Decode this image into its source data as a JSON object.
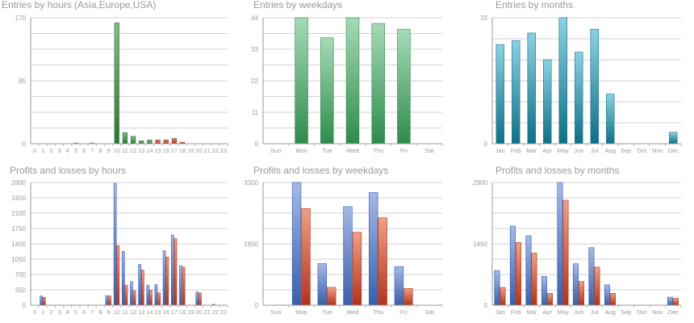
{
  "chart_data": [
    {
      "id": "entries-hours",
      "type": "bar",
      "title": "Entries by hours (Asia,Europe,USA)",
      "xlabel": "",
      "ylabel": "",
      "ylim": [
        0,
        170
      ],
      "yticks": [
        "0",
        "85",
        "170"
      ],
      "gridlines": 8,
      "grid": true,
      "categories": [
        "0",
        "1",
        "2",
        "3",
        "4",
        "5",
        "6",
        "7",
        "8",
        "9",
        "10",
        "11",
        "12",
        "13",
        "14",
        "15",
        "16",
        "17",
        "18",
        "19",
        "20",
        "21",
        "22",
        "23"
      ],
      "series": [
        {
          "values": [
            0,
            0,
            0,
            0,
            0,
            1,
            0,
            1,
            0,
            0,
            163,
            15,
            10,
            4,
            5,
            5,
            5,
            7,
            2,
            0,
            0,
            0,
            0,
            0
          ],
          "colors": [
            "#3d9a47",
            "#3d9a47",
            "#3d9a47",
            "#3d9a47",
            "#3d9a47",
            "#f2b35a",
            "#3d9a47",
            "#f2b35a",
            "#3d9a47",
            "#3d9a47",
            "#3d9a47",
            "#3d9a47",
            "#3d9a47",
            "#3d9a47",
            "#3d9a47",
            "#d0472b",
            "#d0472b",
            "#d0472b",
            "#d0472b",
            "#3d9a47",
            "#3d9a47",
            "#3d9a47",
            "#3d9a47",
            "#3d9a47"
          ]
        }
      ]
    },
    {
      "id": "entries-weekdays",
      "type": "bar",
      "title": "Entries by weekdays",
      "xlabel": "",
      "ylabel": "",
      "ylim": [
        0,
        44
      ],
      "yticks": [
        "0",
        "11",
        "22",
        "33",
        "44"
      ],
      "gridlines": 8,
      "grid": true,
      "categories": [
        "Sun",
        "Mon",
        "Tue",
        "Wed",
        "Thu",
        "Fri",
        "Sat"
      ],
      "series": [
        {
          "values": [
            0,
            44,
            37,
            44,
            42,
            40,
            0
          ],
          "color_top": "#a6dbb7",
          "color_bottom": "#2e8b4c"
        }
      ]
    },
    {
      "id": "entries-months",
      "type": "bar",
      "title": "Entries by months",
      "xlabel": "",
      "ylabel": "",
      "ylim": [
        0,
        33
      ],
      "yticks": [
        "0",
        "33"
      ],
      "gridlines": 6,
      "grid": true,
      "categories": [
        "Jan",
        "Feb",
        "Mar",
        "Apr",
        "May",
        "Jun",
        "Jul",
        "Aug",
        "Sep",
        "Oct",
        "Nov",
        "Dec"
      ],
      "series": [
        {
          "values": [
            26,
            27,
            29,
            22,
            33,
            24,
            30,
            13,
            0,
            0,
            0,
            3
          ],
          "color_top": "#8fd0e3",
          "color_bottom": "#0d6f86"
        }
      ]
    },
    {
      "id": "pl-hours",
      "type": "bar",
      "title": "Profits and losses by hours",
      "xlabel": "",
      "ylabel": "",
      "ylim": [
        0,
        2800
      ],
      "yticks": [
        "0",
        "350",
        "700",
        "1050",
        "1400",
        "1750",
        "2100",
        "2450",
        "2800"
      ],
      "gridlines": 8,
      "grid": true,
      "categories": [
        "0",
        "1",
        "2",
        "3",
        "4",
        "5",
        "6",
        "7",
        "8",
        "9",
        "10",
        "11",
        "12",
        "13",
        "14",
        "15",
        "16",
        "17",
        "18",
        "19",
        "20",
        "21",
        "22",
        "23"
      ],
      "series": [
        {
          "values": [
            0,
            210,
            0,
            0,
            0,
            0,
            0,
            0,
            0,
            220,
            2780,
            1230,
            540,
            930,
            460,
            470,
            1240,
            1600,
            900,
            0,
            300,
            0,
            20,
            0
          ],
          "color_top": "#a4b9e8",
          "color_bottom": "#3a5ea8"
        },
        {
          "values": [
            0,
            180,
            0,
            0,
            0,
            0,
            0,
            0,
            0,
            210,
            1360,
            460,
            330,
            800,
            340,
            280,
            1100,
            1520,
            870,
            0,
            280,
            0,
            0,
            0
          ],
          "color_top": "#f0a085",
          "color_bottom": "#b2321c"
        }
      ]
    },
    {
      "id": "pl-weekdays",
      "type": "bar",
      "title": "Profits and losses by weekdays",
      "xlabel": "",
      "ylabel": "",
      "ylim": [
        0,
        3300
      ],
      "yticks": [
        "0",
        "1650",
        "3300"
      ],
      "gridlines": 8,
      "grid": true,
      "categories": [
        "Sun",
        "Mon",
        "Tue",
        "Wed",
        "Thu",
        "Fri",
        "Sat"
      ],
      "series": [
        {
          "values": [
            0,
            3300,
            1120,
            2650,
            3030,
            1040,
            0
          ],
          "color_top": "#a4b9e8",
          "color_bottom": "#3a5ea8"
        },
        {
          "values": [
            0,
            2600,
            480,
            1960,
            2350,
            450,
            0
          ],
          "color_top": "#f0a085",
          "color_bottom": "#b2321c"
        }
      ]
    },
    {
      "id": "pl-months",
      "type": "bar",
      "title": "Profits and losses by months",
      "xlabel": "",
      "ylabel": "",
      "ylim": [
        0,
        2900
      ],
      "yticks": [
        "0",
        "1450",
        "2900"
      ],
      "gridlines": 8,
      "grid": true,
      "categories": [
        "Jan",
        "Feb",
        "Mar",
        "Apr",
        "May",
        "Jun",
        "Jul",
        "Aug",
        "Sep",
        "Oct",
        "Nov",
        "Dec"
      ],
      "series": [
        {
          "values": [
            820,
            1870,
            1640,
            680,
            2900,
            980,
            1360,
            480,
            0,
            0,
            0,
            190
          ],
          "color_top": "#a4b9e8",
          "color_bottom": "#3a5ea8"
        },
        {
          "values": [
            420,
            1480,
            1230,
            280,
            2480,
            560,
            900,
            280,
            0,
            0,
            0,
            160
          ],
          "color_top": "#f0a085",
          "color_bottom": "#b2321c"
        }
      ]
    }
  ]
}
